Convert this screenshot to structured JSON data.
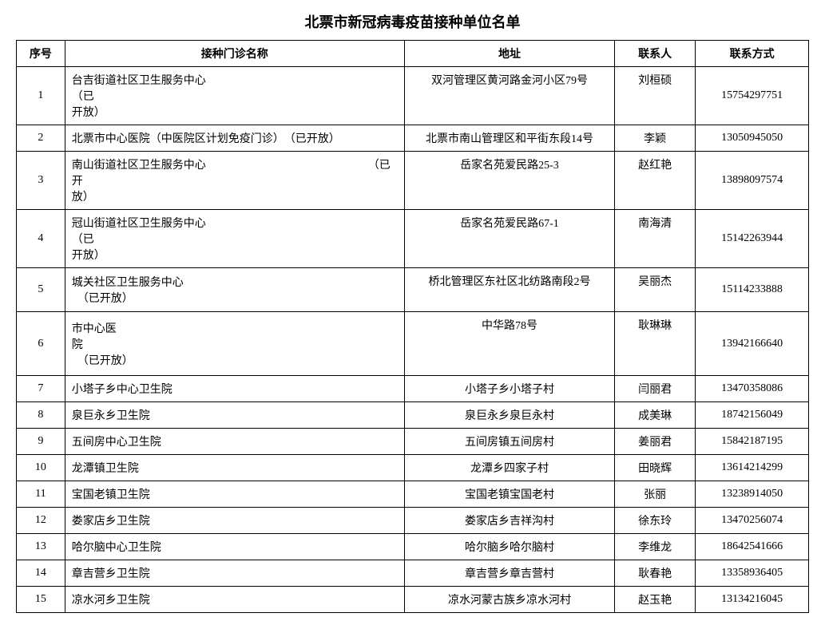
{
  "title": "北票市新冠病毒疫苗接种单位名单",
  "title_fontsize": 18,
  "body_fontsize": 14,
  "columns": {
    "num": "序号",
    "name": "接种门诊名称",
    "addr": "地址",
    "contact": "联系人",
    "phone": "联系方式"
  },
  "rows": [
    {
      "name_lines": [
        "台吉街道社区卫生服务中心　　　　　　　　　　　　　　　　（已",
        "开放）"
      ],
      "addr": "双河管理区黄河路金河小区79号",
      "contact": "刘桓硕",
      "phone": "15754297751",
      "h": 2
    },
    {
      "name_lines": [
        "北票市中心医院（中医院区计划免疫门诊）　（已开放）"
      ],
      "addr": "北票市南山管理区和平街东段14号",
      "contact": "李颖",
      "phone": "13050945050",
      "h": 1
    },
    {
      "name_lines": [
        "南山街道社区卫生服务中心　　　　　　　　　　　　　　　（已开",
        "放）"
      ],
      "addr": "岳家名苑爱民路25-3",
      "contact": "赵红艳",
      "phone": "13898097574",
      "h": 2
    },
    {
      "name_lines": [
        "冠山街道社区卫生服务中心　　　　　　　　　　　　　　　　（已",
        "开放）"
      ],
      "addr": "岳家名苑爱民路67-1",
      "contact": "南海清",
      "phone": "15142263944",
      "h": 2
    },
    {
      "name_lines": [
        "城关社区卫生服务中心",
        "　（已开放）"
      ],
      "addr": "桥北管理区东社区北纺路南段2号",
      "contact": "吴丽杰",
      "phone": "15114233888",
      "h": 2
    },
    {
      "name_lines": [
        "市中心医",
        "院",
        "　（已开放）"
      ],
      "addr": "中华路78号",
      "contact": "耿琳琳",
      "phone": "13942166640",
      "h": 3
    },
    {
      "name_lines": [
        "小塔子乡中心卫生院"
      ],
      "addr": "小塔子乡小塔子村",
      "contact": "闫丽君",
      "phone": "13470358086",
      "h": 1
    },
    {
      "name_lines": [
        "泉巨永乡卫生院"
      ],
      "addr": "泉巨永乡泉巨永村",
      "contact": "成美琳",
      "phone": "18742156049",
      "h": 1
    },
    {
      "name_lines": [
        "五间房中心卫生院"
      ],
      "addr": "五间房镇五间房村",
      "contact": "姜丽君",
      "phone": "15842187195",
      "h": 1
    },
    {
      "name_lines": [
        "龙潭镇卫生院"
      ],
      "addr": "龙潭乡四家子村",
      "contact": "田晓辉",
      "phone": "13614214299",
      "h": 1
    },
    {
      "name_lines": [
        "宝国老镇卫生院"
      ],
      "addr": "宝国老镇宝国老村",
      "contact": "张丽",
      "phone": "13238914050",
      "h": 1
    },
    {
      "name_lines": [
        "娄家店乡卫生院"
      ],
      "addr": "娄家店乡吉祥沟村",
      "contact": "徐东玲",
      "phone": "13470256074",
      "h": 1
    },
    {
      "name_lines": [
        "哈尔脑中心卫生院"
      ],
      "addr": "哈尔脑乡哈尔脑村",
      "contact": "李维龙",
      "phone": "18642541666",
      "h": 1
    },
    {
      "name_lines": [
        "章吉营乡卫生院"
      ],
      "addr": "章吉营乡章吉营村",
      "contact": "耿春艳",
      "phone": "13358936405",
      "h": 1
    },
    {
      "name_lines": [
        "凉水河乡卫生院"
      ],
      "addr": "凉水河蒙古族乡凉水河村",
      "contact": "赵玉艳",
      "phone": "13134216045",
      "h": 1
    }
  ],
  "colors": {
    "border": "#000000",
    "background": "#ffffff",
    "text": "#000000"
  }
}
